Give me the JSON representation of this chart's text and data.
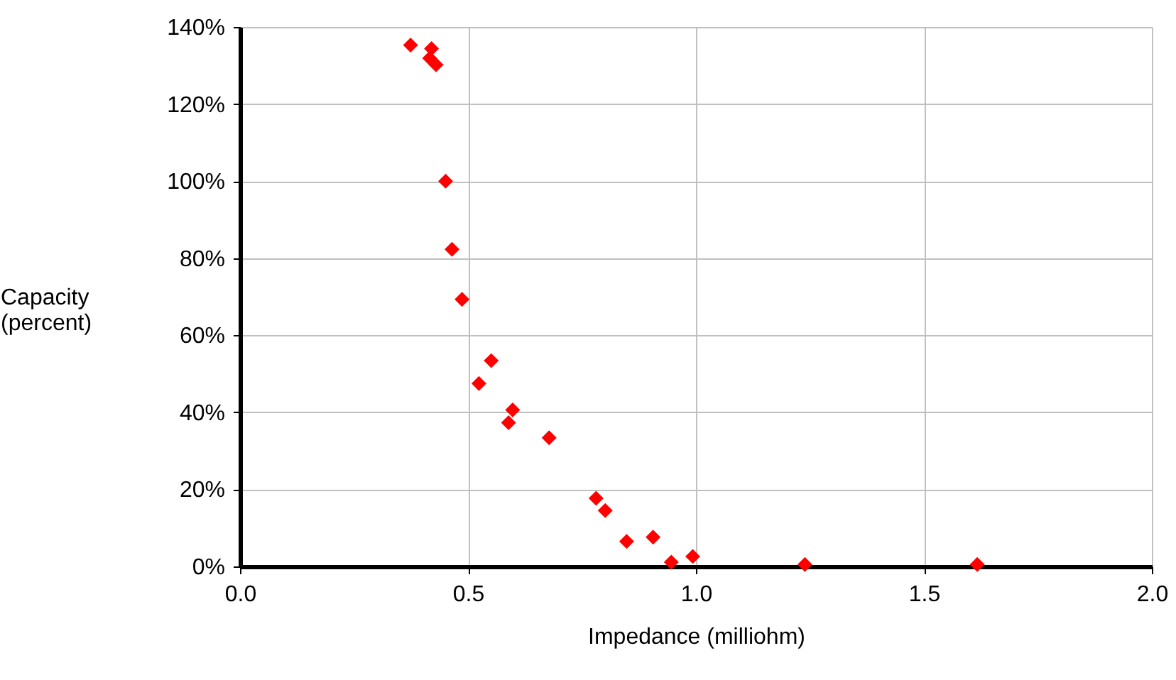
{
  "chart_data": {
    "type": "scatter",
    "xlabel": "Impedance (milliohm)",
    "ylabel": "Capacity\n(percent)",
    "x": [
      0.374,
      0.42,
      0.416,
      0.43,
      0.451,
      0.465,
      0.487,
      0.551,
      0.524,
      0.598,
      0.589,
      0.678,
      0.781,
      0.801,
      0.848,
      0.906,
      0.946,
      0.993,
      1.239,
      1.617
    ],
    "series": [
      {
        "color": "#ff0000",
        "values": [
          135.3,
          134.4,
          131.9,
          130.2,
          100,
          82.3,
          69.3,
          53.4,
          47.5,
          40.6,
          37.3,
          33.4,
          17.7,
          14.5,
          6.5,
          7.6,
          1.1,
          2.6,
          0.5,
          0.5
        ]
      }
    ],
    "xlim": [
      0,
      2
    ],
    "ylim": [
      0,
      140
    ],
    "xticks": [
      {
        "value": 0,
        "label": "0.0"
      },
      {
        "value": 0.5,
        "label": "0.5"
      },
      {
        "value": 1,
        "label": "1.0"
      },
      {
        "value": 1.5,
        "label": "1.5"
      },
      {
        "value": 2,
        "label": "2.0"
      }
    ],
    "yticks": [
      {
        "value": 0,
        "label": "0%"
      },
      {
        "value": 20,
        "label": "20%"
      },
      {
        "value": 40,
        "label": "40%"
      },
      {
        "value": 60,
        "label": "60%"
      },
      {
        "value": 80,
        "label": "80%"
      },
      {
        "value": 100,
        "label": "100%"
      },
      {
        "value": 120,
        "label": "120%"
      },
      {
        "value": 140,
        "label": "140%"
      }
    ],
    "grid": true,
    "marker": "diamond"
  }
}
